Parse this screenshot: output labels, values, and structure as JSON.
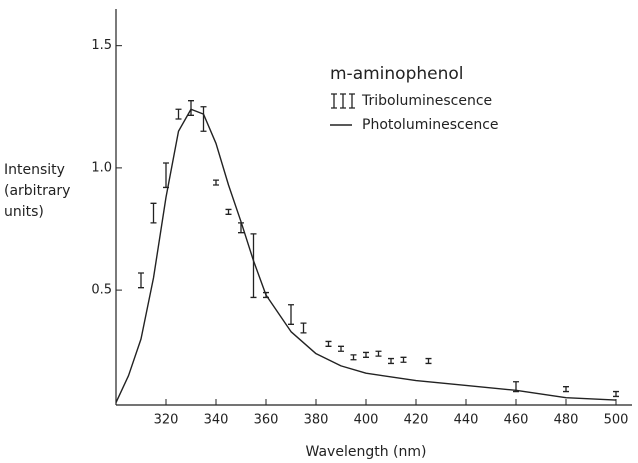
{
  "chart_data": {
    "type": "line",
    "xlabel": "Wavelength (nm)",
    "ylabel": "Intensity (arbitrary units)",
    "legend_title": "m-aminophenol",
    "xlim": [
      300,
      500
    ],
    "xticks": [
      320,
      340,
      360,
      380,
      400,
      420,
      440,
      460,
      480,
      500
    ],
    "ylim": [
      0.03,
      1.65
    ],
    "yticks": [
      {
        "value": 0.5,
        "label": "0.5"
      },
      {
        "value": 1.0,
        "label": "1.0"
      },
      {
        "value": 1.5,
        "label": "1.5"
      }
    ],
    "series": [
      {
        "name": "Triboluminescence",
        "color": "#222222",
        "x": [
          310,
          315,
          320,
          325,
          330,
          335,
          340,
          345,
          350,
          355,
          360,
          370,
          375,
          385,
          390,
          395,
          400,
          405,
          410,
          415,
          425,
          460,
          480,
          500
        ],
        "values": [
          0.54,
          0.815,
          0.97,
          1.22,
          1.245,
          1.2,
          0.94,
          0.82,
          0.755,
          0.6,
          0.48,
          0.4,
          0.345,
          0.28,
          0.26,
          0.225,
          0.235,
          0.24,
          0.21,
          0.215,
          0.21,
          0.105,
          0.095,
          0.075
        ],
        "errors": [
          0.03,
          0.04,
          0.05,
          0.02,
          0.03,
          0.05,
          0.01,
          0.01,
          0.02,
          0.13,
          0.01,
          0.04,
          0.02,
          0.01,
          0.01,
          0.01,
          0.01,
          0.01,
          0.01,
          0.01,
          0.01,
          0.02,
          0.01,
          0.01
        ]
      },
      {
        "name": "Photoluminescence",
        "color": "#222222",
        "x": [
          300,
          305,
          310,
          315,
          320,
          325,
          330,
          335,
          340,
          345,
          350,
          355,
          360,
          370,
          380,
          390,
          400,
          420,
          440,
          460,
          480,
          500
        ],
        "values": [
          0.04,
          0.15,
          0.3,
          0.55,
          0.88,
          1.15,
          1.24,
          1.22,
          1.1,
          0.93,
          0.78,
          0.62,
          0.48,
          0.33,
          0.24,
          0.19,
          0.16,
          0.13,
          0.11,
          0.09,
          0.06,
          0.05
        ]
      }
    ]
  }
}
